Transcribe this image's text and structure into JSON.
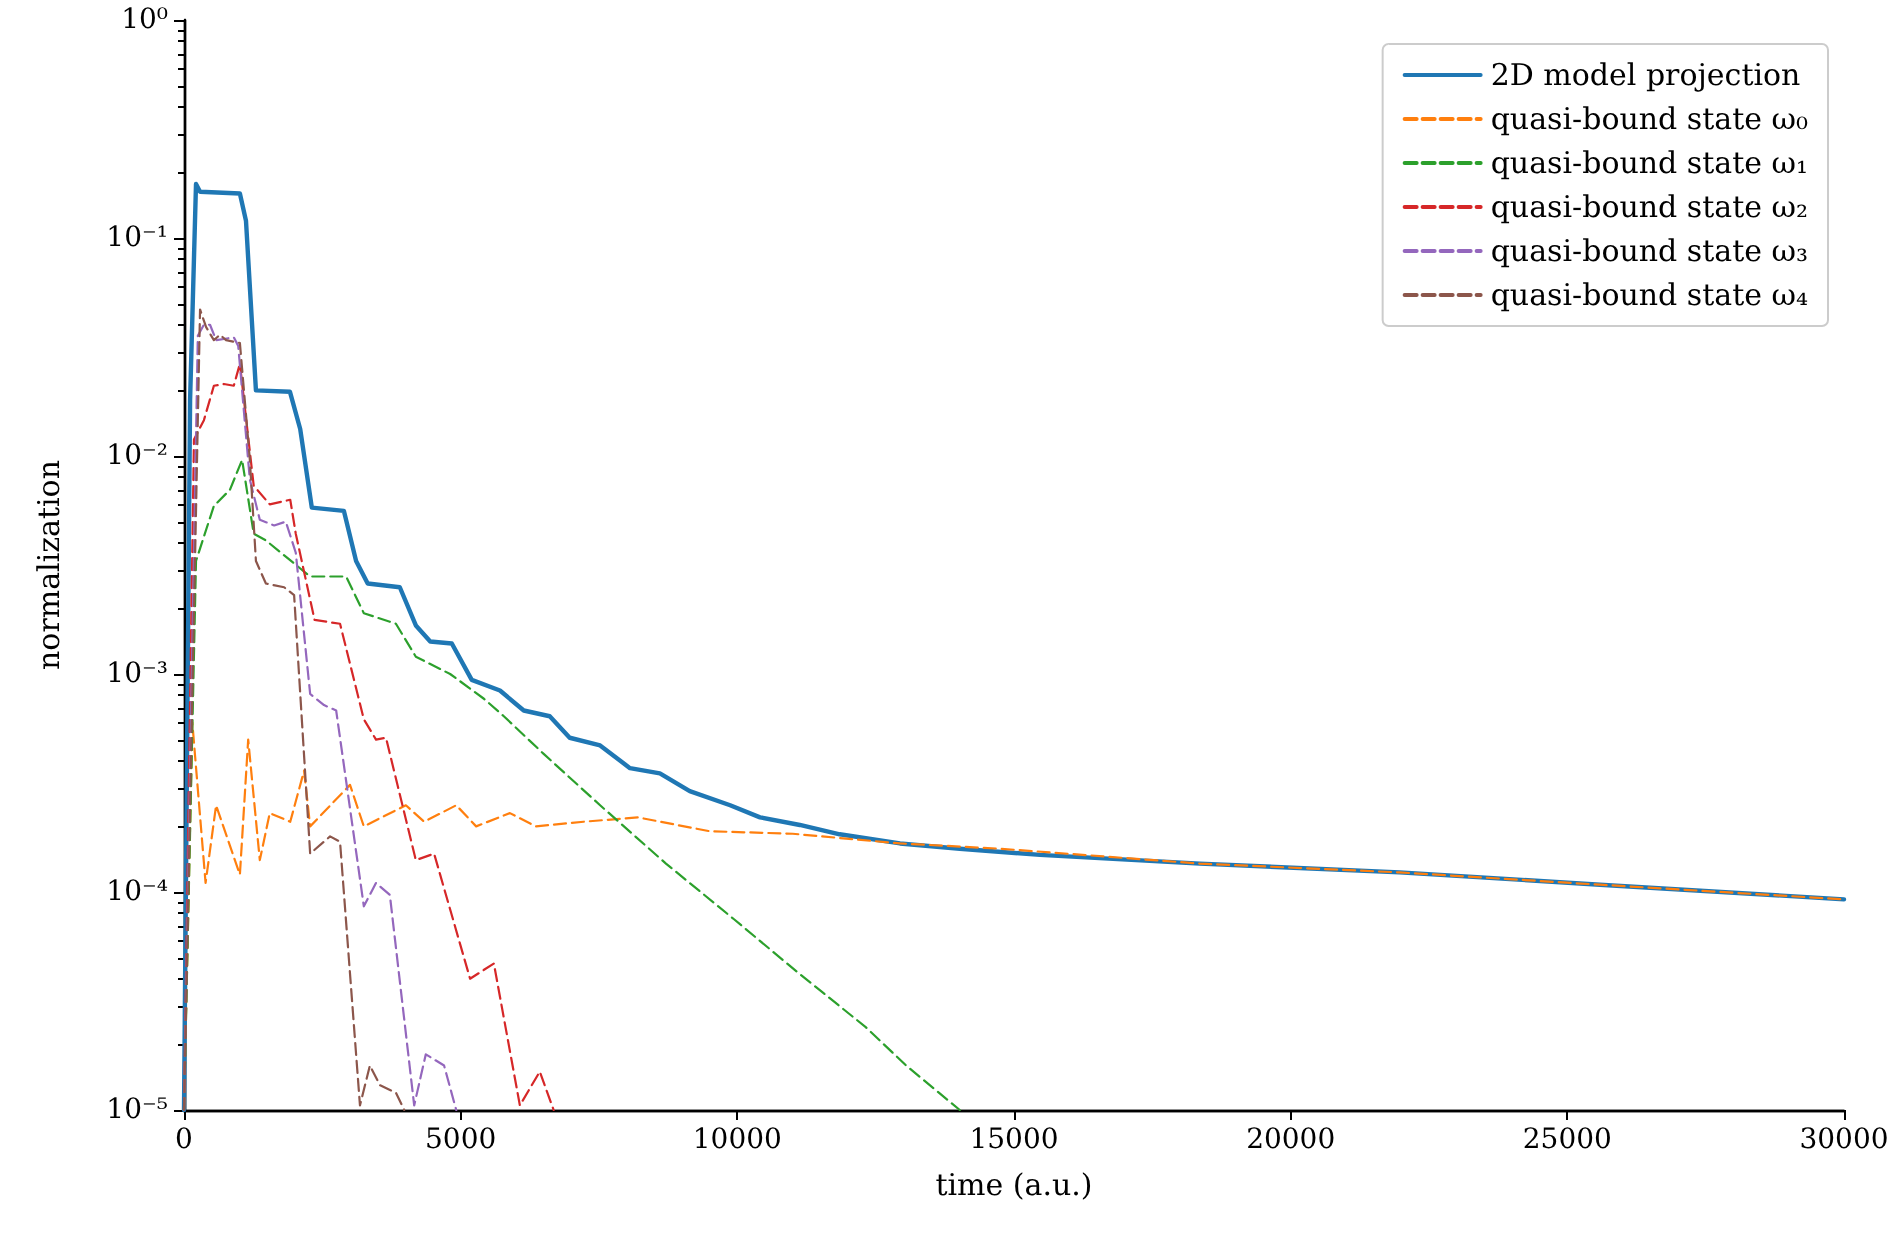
{
  "chart_data": {
    "type": "line",
    "xlabel": "time (a.u.)",
    "ylabel": "normalization",
    "log": "y",
    "grid": false,
    "legend": "top right",
    "marker": "none",
    "xlim": [
      0,
      30000
    ],
    "xticks": [
      0,
      5000,
      10000,
      15000,
      20000,
      25000,
      30000
    ],
    "ylim": [
      1e-05,
      1
    ],
    "yticks": [
      {
        "value": 1e-05,
        "label": "10⁻⁵"
      },
      {
        "value": 0.0001,
        "label": "10⁻⁴"
      },
      {
        "value": 0.001,
        "label": "10⁻³"
      },
      {
        "value": 0.01,
        "label": "10⁻²"
      },
      {
        "value": 0.1,
        "label": "10⁻¹"
      },
      {
        "value": 1,
        "label": "10⁰"
      }
    ],
    "series": [
      {
        "name": "2D model projection",
        "color": "#1f77b4",
        "line_style": "solid",
        "x": [
          0,
          110,
          217,
          290,
          1010,
          1120,
          1300,
          1915,
          2100,
          2310,
          2890,
          3110,
          3320,
          3900,
          4190,
          4450,
          4840,
          5200,
          5710,
          6140,
          6610,
          6970,
          7520,
          8060,
          8600,
          9140,
          9870,
          10410,
          11130,
          11850,
          12940,
          14020,
          15470,
          18360,
          21970,
          25590,
          30000
        ],
        "values": [
          1e-05,
          0.018,
          0.177,
          0.163,
          0.16,
          0.12,
          0.02,
          0.0197,
          0.0133,
          0.0058,
          0.0056,
          0.0033,
          0.0026,
          0.0025,
          0.00167,
          0.00141,
          0.00138,
          0.00094,
          0.00084,
          0.00068,
          0.00064,
          0.00051,
          0.00047,
          0.00037,
          0.00035,
          0.00029,
          0.00025,
          0.00022,
          0.000203,
          0.000184,
          0.000167,
          0.000158,
          0.000148,
          0.000135,
          0.000123,
          0.000108,
          9.25e-05
        ]
      },
      {
        "name": "quasi-bound state ω₀",
        "color": "#ff7f0e",
        "line_style": "dashed",
        "x": [
          0,
          150,
          390,
          580,
          1010,
          1160,
          1370,
          1550,
          1920,
          2170,
          2280,
          3000,
          3250,
          4010,
          4340,
          4920,
          5280,
          5890,
          6360,
          7220,
          8200,
          9500,
          11000,
          12940,
          14740,
          18360,
          21970,
          25590,
          30000
        ],
        "values": [
          1e-05,
          0.0006,
          0.00011,
          0.00025,
          0.00012,
          0.0005,
          0.00014,
          0.00023,
          0.00021,
          0.00036,
          0.0002,
          0.00031,
          0.0002,
          0.00025,
          0.00021,
          0.00025,
          0.0002,
          0.00023,
          0.0002,
          0.00021,
          0.00022,
          0.00019,
          0.000185,
          0.000167,
          0.000158,
          0.000135,
          0.000123,
          0.000108,
          9.25e-05
        ]
      },
      {
        "name": "quasi-bound state ω₁",
        "color": "#2ca02c",
        "line_style": "dashed",
        "x": [
          0,
          217,
          540,
          830,
          1050,
          1260,
          1480,
          2280,
          2930,
          3250,
          3830,
          4190,
          4810,
          5420,
          5780,
          6500,
          7520,
          8710,
          9940,
          11130,
          12320,
          13050,
          14020
        ],
        "values": [
          1e-05,
          0.0033,
          0.0059,
          0.007,
          0.0096,
          0.0044,
          0.0041,
          0.0028,
          0.0028,
          0.0019,
          0.0017,
          0.0012,
          0.001,
          0.00077,
          0.00064,
          0.00043,
          0.00025,
          0.000135,
          7.5e-05,
          4.2e-05,
          2.4e-05,
          1.6e-05,
          1e-05
        ]
      },
      {
        "name": "quasi-bound state ω₂",
        "color": "#d62728",
        "line_style": "dashed",
        "x": [
          0,
          180,
          360,
          540,
          720,
          900,
          1010,
          1260,
          1550,
          1920,
          2020,
          2360,
          2820,
          3250,
          3470,
          3650,
          4190,
          4520,
          5170,
          5600,
          6070,
          6430,
          6680
        ],
        "values": [
          1e-05,
          0.0119,
          0.0146,
          0.021,
          0.0214,
          0.021,
          0.0265,
          0.0073,
          0.006,
          0.0063,
          0.0044,
          0.00177,
          0.0017,
          0.00062,
          0.0005,
          0.00051,
          0.00014,
          0.00015,
          4e-05,
          4.7e-05,
          1.05e-05,
          1.5e-05,
          1e-05
        ]
      },
      {
        "name": "quasi-bound state ω₃",
        "color": "#9467bd",
        "line_style": "dashed",
        "x": [
          0,
          250,
          360,
          470,
          580,
          900,
          980,
          1190,
          1370,
          1630,
          1840,
          2020,
          2280,
          2530,
          2750,
          3250,
          3470,
          3720,
          4160,
          4370,
          4700,
          4920
        ],
        "values": [
          1e-05,
          0.0356,
          0.04,
          0.04,
          0.034,
          0.035,
          0.032,
          0.0078,
          0.0051,
          0.0048,
          0.005,
          0.0036,
          0.00081,
          0.00072,
          0.00068,
          8.6e-05,
          0.00011,
          9.7e-05,
          1.05e-05,
          1.8e-05,
          1.6e-05,
          1e-05
        ]
      },
      {
        "name": "quasi-bound state ω₄",
        "color": "#8c564b",
        "line_style": "dashed",
        "x": [
          0,
          290,
          400,
          540,
          650,
          760,
          1010,
          1190,
          1300,
          1480,
          1810,
          1990,
          2280,
          2640,
          2820,
          3180,
          3360,
          3540,
          3830,
          3980
        ],
        "values": [
          1e-05,
          0.047,
          0.039,
          0.034,
          0.036,
          0.034,
          0.033,
          0.0096,
          0.0033,
          0.0026,
          0.0025,
          0.0023,
          0.00015,
          0.00018,
          0.00017,
          1.05e-05,
          1.6e-05,
          1.3e-05,
          1.2e-05,
          1e-05
        ]
      }
    ]
  }
}
